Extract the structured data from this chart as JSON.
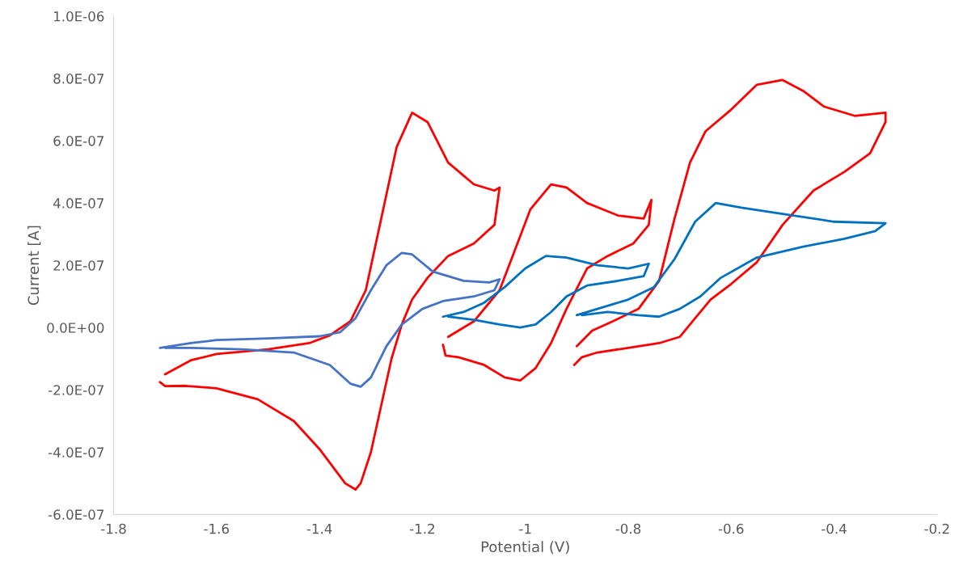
{
  "chart_data": {
    "type": "line",
    "xlabel": "Potential (V)",
    "ylabel": "Current [A]",
    "xlim": [
      -1.8,
      -0.2
    ],
    "xticks": [
      -1.8,
      -1.6,
      -1.4,
      -1.2,
      -1,
      -0.8,
      -0.6,
      -0.4,
      -0.2
    ],
    "ylim": [
      -6e-07,
      1e-06
    ],
    "yticks": [
      {
        "value": -6e-07,
        "label": "-6.0E-07"
      },
      {
        "value": -4e-07,
        "label": "-4.0E-07"
      },
      {
        "value": -2e-07,
        "label": "-2.0E-07"
      },
      {
        "value": 0,
        "label": "0.0E+00"
      },
      {
        "value": 2e-07,
        "label": "2.0E-07"
      },
      {
        "value": 4e-07,
        "label": "4.0E-07"
      },
      {
        "value": 6e-07,
        "label": "6.0E-07"
      },
      {
        "value": 8e-07,
        "label": "8.0E-07"
      },
      {
        "value": 1e-06,
        "label": "1.0E-06"
      }
    ],
    "grid": false,
    "legend": false,
    "marker": "none",
    "line_style": "solid",
    "series": [
      {
        "color": "#ff0000",
        "x": [
          -1.7,
          -1.65,
          -1.6,
          -1.5,
          -1.42,
          -1.38,
          -1.34,
          -1.31,
          -1.28,
          -1.25,
          -1.22,
          -1.19,
          -1.15,
          -1.1,
          -1.06,
          -1.05,
          -1.06,
          -1.1,
          -1.15,
          -1.19,
          -1.22,
          -1.24,
          -1.26,
          -1.28,
          -1.3,
          -1.32,
          -1.33,
          -1.35,
          -1.4,
          -1.45,
          -1.52,
          -1.6,
          -1.66,
          -1.7,
          -1.71
        ],
        "values": [
          -1.5e-07,
          -1.05e-07,
          -8.5e-08,
          -7e-08,
          -5e-08,
          -2.5e-08,
          2e-08,
          1.2e-07,
          3.5e-07,
          5.8e-07,
          6.9e-07,
          6.6e-07,
          5.3e-07,
          4.6e-07,
          4.4e-07,
          4.5e-07,
          3.3e-07,
          2.7e-07,
          2.3e-07,
          1.6e-07,
          9e-08,
          1e-08,
          -1e-07,
          -2.5e-07,
          -4e-07,
          -5e-07,
          -5.2e-07,
          -5e-07,
          -3.9e-07,
          -3e-07,
          -2.3e-07,
          -1.95e-07,
          -1.87e-07,
          -1.88e-07,
          -1.75e-07
        ]
      },
      {
        "color": "#4472c4",
        "x": [
          -1.71,
          -1.65,
          -1.6,
          -1.5,
          -1.4,
          -1.36,
          -1.33,
          -1.3,
          -1.27,
          -1.24,
          -1.22,
          -1.18,
          -1.12,
          -1.07,
          -1.05,
          -1.06,
          -1.1,
          -1.16,
          -1.2,
          -1.24,
          -1.27,
          -1.3,
          -1.32,
          -1.34,
          -1.38,
          -1.45,
          -1.55,
          -1.65,
          -1.7
        ],
        "values": [
          -6.5e-08,
          -5e-08,
          -4e-08,
          -3.5e-08,
          -2.8e-08,
          -1.5e-08,
          3e-08,
          1.2e-07,
          2e-07,
          2.4e-07,
          2.35e-07,
          1.8e-07,
          1.5e-07,
          1.45e-07,
          1.55e-07,
          1.2e-07,
          1e-07,
          8.5e-08,
          6e-08,
          1e-08,
          -6e-08,
          -1.6e-07,
          -1.9e-07,
          -1.8e-07,
          -1.2e-07,
          -8e-08,
          -7e-08,
          -6.5e-08,
          -6.5e-08
        ]
      },
      {
        "color": "#ff0000",
        "x": [
          -1.15,
          -1.1,
          -1.05,
          -1.02,
          -0.99,
          -0.95,
          -0.92,
          -0.88,
          -0.82,
          -0.77,
          -0.755,
          -0.76,
          -0.79,
          -0.84,
          -0.88,
          -0.92,
          -0.95,
          -0.98,
          -1.01,
          -1.04,
          -1.08,
          -1.13,
          -1.155,
          -1.16
        ],
        "values": [
          -3e-08,
          2e-08,
          1.2e-07,
          2.5e-07,
          3.8e-07,
          4.6e-07,
          4.5e-07,
          4e-07,
          3.6e-07,
          3.5e-07,
          4.1e-07,
          3.3e-07,
          2.7e-07,
          2.3e-07,
          1.9e-07,
          6e-08,
          -5e-08,
          -1.3e-07,
          -1.7e-07,
          -1.6e-07,
          -1.2e-07,
          -9.5e-08,
          -9e-08,
          -5.5e-08
        ]
      },
      {
        "color": "#0070c0",
        "x": [
          -1.16,
          -1.12,
          -1.08,
          -1.04,
          -1,
          -0.96,
          -0.92,
          -0.86,
          -0.8,
          -0.76,
          -0.77,
          -0.82,
          -0.88,
          -0.92,
          -0.95,
          -0.98,
          -1.01,
          -1.05,
          -1.1,
          -1.15
        ],
        "values": [
          3.5e-08,
          5e-08,
          8e-08,
          1.3e-07,
          1.9e-07,
          2.3e-07,
          2.25e-07,
          2e-07,
          1.9e-07,
          2.05e-07,
          1.65e-07,
          1.5e-07,
          1.35e-07,
          1e-07,
          5e-08,
          1e-08,
          0,
          1e-08,
          2.5e-08,
          3.5e-08
        ]
      },
      {
        "color": "#ff0000",
        "x": [
          -0.9,
          -0.87,
          -0.83,
          -0.78,
          -0.74,
          -0.71,
          -0.68,
          -0.65,
          -0.6,
          -0.55,
          -0.5,
          -0.46,
          -0.42,
          -0.36,
          -0.3,
          -0.3,
          -0.33,
          -0.38,
          -0.44,
          -0.5,
          -0.55,
          -0.6,
          -0.64,
          -0.67,
          -0.7,
          -0.74,
          -0.8,
          -0.86,
          -0.89,
          -0.905
        ],
        "values": [
          -6e-08,
          -1e-08,
          2e-08,
          6e-08,
          1.5e-07,
          3.5e-07,
          5.3e-07,
          6.3e-07,
          7e-07,
          7.8e-07,
          7.95e-07,
          7.6e-07,
          7.1e-07,
          6.8e-07,
          6.9e-07,
          6.6e-07,
          5.6e-07,
          5e-07,
          4.4e-07,
          3.3e-07,
          2.1e-07,
          1.4e-07,
          9e-08,
          3e-08,
          -3e-08,
          -5e-08,
          -6.5e-08,
          -8e-08,
          -9.5e-08,
          -1.2e-07
        ]
      },
      {
        "color": "#0070c0",
        "x": [
          -0.9,
          -0.86,
          -0.8,
          -0.75,
          -0.71,
          -0.67,
          -0.63,
          -0.58,
          -0.5,
          -0.4,
          -0.3,
          -0.32,
          -0.38,
          -0.46,
          -0.55,
          -0.62,
          -0.66,
          -0.7,
          -0.74,
          -0.78,
          -0.84,
          -0.89
        ],
        "values": [
          4e-08,
          6e-08,
          9e-08,
          1.3e-07,
          2.2e-07,
          3.4e-07,
          4e-07,
          3.85e-07,
          3.65e-07,
          3.4e-07,
          3.35e-07,
          3.1e-07,
          2.85e-07,
          2.6e-07,
          2.25e-07,
          1.6e-07,
          1e-07,
          6e-08,
          3.5e-08,
          4e-08,
          5e-08,
          4e-08
        ]
      }
    ]
  }
}
